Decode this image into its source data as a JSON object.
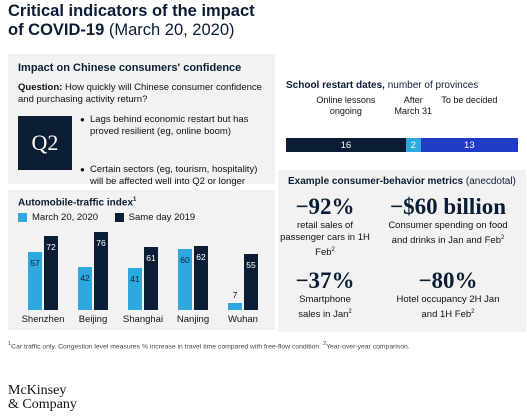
{
  "header": {
    "title_bold_1": "Critical indicators of the impact",
    "title_bold_2": "of COVID-19",
    "title_date": "(March 20, 2020)"
  },
  "confidence": {
    "heading": "Impact on Chinese consumers' confidence",
    "question_label": "Question:",
    "question_text": "How quickly will Chinese consumer confidence and purchasing activity return?",
    "box_label": "Q2",
    "bullets": [
      "Lags behind economic restart but has proved resilient (eg, online boom)",
      "Certain sectors (eg, tourism, hospitality) will be affected well into Q2 or longer"
    ]
  },
  "traffic": {
    "heading": "Automobile-traffic index",
    "heading_sup": "1",
    "legend": [
      {
        "label": "March 20, 2020",
        "color": "#2fa8e0"
      },
      {
        "label": "Same day 2019",
        "color": "#0b1d35"
      }
    ]
  },
  "chart_data": {
    "type": "bar",
    "title": "Automobile-traffic index",
    "categories": [
      "Shenzhen",
      "Beijing",
      "Shanghai",
      "Nanjing",
      "Wuhan"
    ],
    "series": [
      {
        "name": "March 20, 2020",
        "values": [
          57,
          42,
          41,
          60,
          7
        ],
        "color": "#2fa8e0"
      },
      {
        "name": "Same day 2019",
        "values": [
          72,
          76,
          61,
          62,
          55
        ],
        "color": "#0b1d35"
      }
    ],
    "ylim": [
      0,
      80
    ]
  },
  "school": {
    "heading_bold": "School restart dates,",
    "heading_rest": "number of provinces",
    "segments": [
      {
        "label": "Online lessons ongoing",
        "value": 16,
        "color": "#0b1d35"
      },
      {
        "label": "After March 31",
        "value": 2,
        "color": "#2fa8e0"
      },
      {
        "label": "To be decided",
        "value": 13,
        "color": "#1f3cc7"
      }
    ]
  },
  "consumer": {
    "heading_bold": "Example consumer-behavior metrics",
    "heading_rest": "(anecdotal)",
    "metrics": [
      {
        "value": "−92%",
        "desc": "retail sales of passenger cars in 1H Feb",
        "sup": "2"
      },
      {
        "value": "−$60 billion",
        "desc": "Consumer spending on food and drinks in Jan and Feb",
        "sup": "2"
      },
      {
        "value": "−37%",
        "desc": "Smartphone sales in Jan",
        "sup": "2"
      },
      {
        "value": "−80%",
        "desc": "Hotel occupancy 2H Jan and 1H Feb",
        "sup": "2"
      }
    ]
  },
  "footnote": {
    "sup1": "1",
    "text1": "Car traffic only. Congestion level measures % increase in travel time compared with free-flow condition.",
    "sup2": "2",
    "text2": "Year-over-year comparison."
  },
  "logo": {
    "line1": "McKinsey",
    "line2": "& Company"
  }
}
